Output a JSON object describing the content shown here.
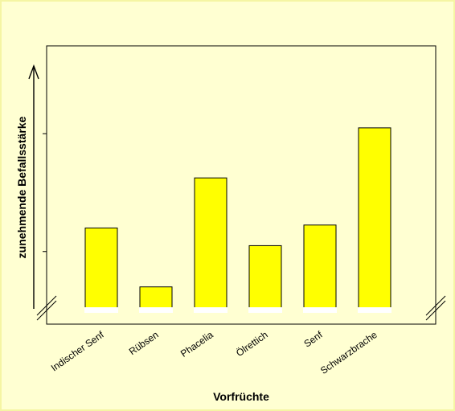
{
  "chart_data": {
    "type": "bar",
    "categories": [
      "Indischer Senf",
      "Rübsen",
      "Phacelia",
      "Ölrettich",
      "Senf",
      "Schwarzbrache"
    ],
    "values": [
      28,
      8,
      45,
      22,
      29,
      62
    ],
    "ylim": [
      0,
      80
    ],
    "xlabel": "Vorfrüchte",
    "ylabel": "zunehmende Befallsstärke",
    "y_axis_broken": true,
    "y_ticks_unlabeled": true,
    "grid": false,
    "colors": {
      "bar": "#ffff00",
      "bar_border": "#000000",
      "background": "#ffffd2",
      "frame": "#f5f5a3"
    }
  }
}
